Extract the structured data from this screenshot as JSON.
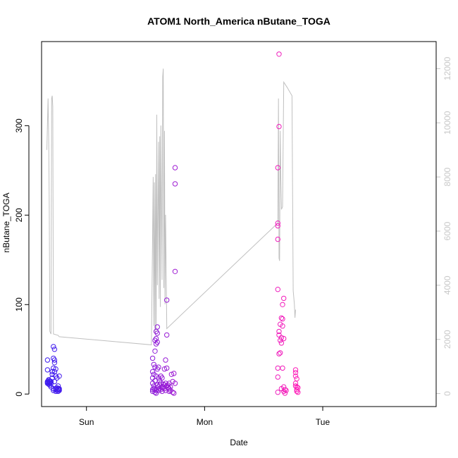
{
  "chart_data": {
    "type": "scatter",
    "title": "ATOM1 North_America nButane_TOGA",
    "xlabel": "Date",
    "ylabel": "nButane_TOGA",
    "x_ticks": [
      {
        "label": "Sun",
        "x": 0.0
      },
      {
        "label": "Mon",
        "x": 1.0
      },
      {
        "label": "Tue",
        "x": 2.0
      }
    ],
    "xlim": [
      -0.38,
      2.96
    ],
    "ylim": [
      -14,
      394
    ],
    "y_ticks": [
      0,
      100,
      200,
      300
    ],
    "y2_ticks": [
      0,
      2000,
      4000,
      6000,
      8000,
      10000,
      12000
    ],
    "y2lim": [
      -480,
      13000
    ],
    "colors": {
      "frame": "#000000",
      "secondary_line": "#c0c0c0",
      "secondary_axis": "#c8c8c8",
      "point_start": "#3b1cf0",
      "point_end": "#ff1fb8"
    },
    "series": [
      {
        "kind": "points",
        "points": [
          [
            -0.33,
            13
          ],
          [
            -0.33,
            14
          ],
          [
            -0.33,
            12
          ],
          [
            -0.32,
            16
          ],
          [
            -0.32,
            11
          ],
          [
            -0.32,
            15
          ],
          [
            -0.32,
            13
          ],
          [
            -0.31,
            12
          ],
          [
            -0.31,
            14
          ],
          [
            -0.31,
            10
          ],
          [
            -0.33,
            27
          ],
          [
            -0.33,
            38
          ],
          [
            -0.3,
            14
          ],
          [
            -0.3,
            12
          ],
          [
            -0.3,
            8
          ],
          [
            -0.29,
            22
          ],
          [
            -0.29,
            18
          ],
          [
            -0.29,
            25
          ],
          [
            -0.28,
            40
          ],
          [
            -0.28,
            53
          ],
          [
            -0.28,
            29
          ],
          [
            -0.28,
            6
          ],
          [
            -0.28,
            4
          ],
          [
            -0.27,
            38
          ],
          [
            -0.27,
            35
          ],
          [
            -0.27,
            50
          ],
          [
            -0.27,
            25
          ],
          [
            -0.27,
            14
          ],
          [
            -0.26,
            6
          ],
          [
            -0.26,
            3
          ],
          [
            -0.26,
            5
          ],
          [
            -0.26,
            28
          ],
          [
            -0.26,
            20
          ],
          [
            -0.25,
            7
          ],
          [
            -0.25,
            4
          ],
          [
            -0.25,
            18
          ],
          [
            -0.24,
            6
          ],
          [
            -0.24,
            5
          ],
          [
            -0.24,
            3
          ],
          [
            -0.24,
            9
          ],
          [
            -0.23,
            6
          ],
          [
            -0.23,
            4
          ],
          [
            -0.23,
            20
          ],
          [
            -0.23,
            5
          ],
          [
            0.56,
            5
          ],
          [
            0.56,
            40
          ],
          [
            0.56,
            25
          ],
          [
            0.56,
            18
          ],
          [
            0.56,
            12
          ],
          [
            0.56,
            3
          ],
          [
            0.57,
            33
          ],
          [
            0.57,
            22
          ],
          [
            0.57,
            6
          ],
          [
            0.57,
            9
          ],
          [
            0.58,
            15
          ],
          [
            0.58,
            2
          ],
          [
            0.58,
            60
          ],
          [
            0.58,
            48
          ],
          [
            0.58,
            30
          ],
          [
            0.58,
            5
          ],
          [
            0.59,
            70
          ],
          [
            0.59,
            62
          ],
          [
            0.59,
            56
          ],
          [
            0.59,
            20
          ],
          [
            0.59,
            4
          ],
          [
            0.59,
            1
          ],
          [
            0.6,
            75
          ],
          [
            0.6,
            68
          ],
          [
            0.6,
            58
          ],
          [
            0.6,
            28
          ],
          [
            0.6,
            10
          ],
          [
            0.61,
            30
          ],
          [
            0.61,
            18
          ],
          [
            0.61,
            8
          ],
          [
            0.61,
            4
          ],
          [
            0.62,
            15
          ],
          [
            0.62,
            10
          ],
          [
            0.62,
            6
          ],
          [
            0.63,
            20
          ],
          [
            0.63,
            12
          ],
          [
            0.63,
            5
          ],
          [
            0.64,
            8
          ],
          [
            0.64,
            3
          ],
          [
            0.64,
            18
          ],
          [
            0.65,
            11
          ],
          [
            0.65,
            7
          ],
          [
            0.66,
            28
          ],
          [
            0.66,
            10
          ],
          [
            0.66,
            6
          ],
          [
            0.67,
            38
          ],
          [
            0.67,
            12
          ],
          [
            0.67,
            4
          ],
          [
            0.68,
            105
          ],
          [
            0.68,
            66
          ],
          [
            0.68,
            29
          ],
          [
            0.68,
            9
          ],
          [
            0.69,
            10
          ],
          [
            0.69,
            7
          ],
          [
            0.7,
            12
          ],
          [
            0.7,
            6
          ],
          [
            0.7,
            3
          ],
          [
            0.71,
            8
          ],
          [
            0.71,
            4
          ],
          [
            0.72,
            22
          ],
          [
            0.73,
            14
          ],
          [
            0.73,
            2
          ],
          [
            0.74,
            23
          ],
          [
            0.74,
            1
          ],
          [
            0.75,
            253
          ],
          [
            0.75,
            235
          ],
          [
            0.75,
            137
          ],
          [
            0.75,
            12
          ],
          [
            1.63,
            380
          ],
          [
            1.63,
            299
          ],
          [
            1.62,
            253
          ],
          [
            1.62,
            191
          ],
          [
            1.62,
            188
          ],
          [
            1.62,
            173
          ],
          [
            1.62,
            117
          ],
          [
            1.62,
            29
          ],
          [
            1.62,
            19
          ],
          [
            1.62,
            2
          ],
          [
            1.63,
            70
          ],
          [
            1.63,
            66
          ],
          [
            1.63,
            45
          ],
          [
            1.64,
            78
          ],
          [
            1.64,
            60
          ],
          [
            1.64,
            46
          ],
          [
            1.65,
            85
          ],
          [
            1.65,
            63
          ],
          [
            1.65,
            57
          ],
          [
            1.65,
            6
          ],
          [
            1.66,
            100
          ],
          [
            1.66,
            84
          ],
          [
            1.66,
            76
          ],
          [
            1.66,
            29
          ],
          [
            1.67,
            107
          ],
          [
            1.67,
            62
          ],
          [
            1.67,
            8
          ],
          [
            1.67,
            3
          ],
          [
            1.68,
            5
          ],
          [
            1.68,
            1
          ],
          [
            1.69,
            4
          ],
          [
            1.77,
            27
          ],
          [
            1.77,
            24
          ],
          [
            1.77,
            20
          ],
          [
            1.77,
            12
          ],
          [
            1.77,
            9
          ],
          [
            1.78,
            17
          ],
          [
            1.78,
            8
          ],
          [
            1.78,
            5
          ],
          [
            1.78,
            3
          ],
          [
            1.79,
            7
          ],
          [
            1.79,
            2
          ]
        ]
      },
      {
        "kind": "line",
        "axis": "secondary",
        "points": [
          [
            -0.335,
            9000
          ],
          [
            -0.33,
            10000
          ],
          [
            -0.325,
            10900
          ],
          [
            -0.32,
            9500
          ],
          [
            -0.315,
            7000
          ],
          [
            -0.31,
            2300
          ],
          [
            -0.3,
            2200
          ],
          [
            -0.295,
            10900
          ],
          [
            -0.29,
            11000
          ],
          [
            -0.285,
            10600
          ],
          [
            -0.28,
            2200
          ],
          [
            -0.24,
            2150
          ],
          [
            -0.23,
            2100
          ],
          [
            0.55,
            1800
          ],
          [
            0.565,
            8000
          ],
          [
            0.57,
            2500
          ],
          [
            0.575,
            7800
          ],
          [
            0.58,
            2200
          ],
          [
            0.585,
            8100
          ],
          [
            0.59,
            2400
          ],
          [
            0.595,
            10300
          ],
          [
            0.6,
            4000
          ],
          [
            0.61,
            9300
          ],
          [
            0.615,
            3500
          ],
          [
            0.62,
            9500
          ],
          [
            0.625,
            3200
          ],
          [
            0.63,
            9900
          ],
          [
            0.64,
            4200
          ],
          [
            0.645,
            11700
          ],
          [
            0.65,
            12000
          ],
          [
            0.655,
            3900
          ],
          [
            0.66,
            9700
          ],
          [
            0.665,
            3300
          ],
          [
            0.67,
            6600
          ],
          [
            0.68,
            2400
          ],
          [
            1.62,
            6300
          ],
          [
            1.625,
            10900
          ],
          [
            1.63,
            5000
          ],
          [
            1.635,
            4900
          ],
          [
            1.64,
            9700
          ],
          [
            1.645,
            8000
          ],
          [
            1.65,
            6800
          ],
          [
            1.66,
            6900
          ],
          [
            1.67,
            11500
          ],
          [
            1.7,
            11300
          ],
          [
            1.74,
            11000
          ],
          [
            1.75,
            3800
          ],
          [
            1.76,
            3300
          ],
          [
            1.765,
            2800
          ],
          [
            1.77,
            3100
          ]
        ]
      }
    ]
  }
}
